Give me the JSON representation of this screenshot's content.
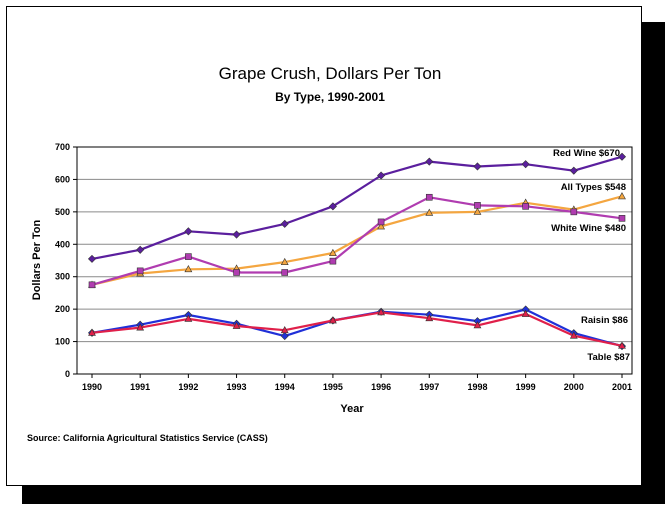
{
  "chart_data": {
    "type": "line",
    "title": "Grape Crush, Dollars Per Ton",
    "subtitle": "By Type, 1990-2001",
    "xlabel": "Year",
    "ylabel": "Dollars Per Ton",
    "ylim": [
      0,
      700
    ],
    "yticks": [
      "0",
      "100",
      "200",
      "300",
      "400",
      "500",
      "600",
      "700"
    ],
    "grid": true,
    "categories": [
      "1990",
      "1991",
      "1992",
      "1993",
      "1994",
      "1995",
      "1996",
      "1997",
      "1998",
      "1999",
      "2000",
      "2001"
    ],
    "series": [
      {
        "name": "Red Wine",
        "label": "Red Wine $670",
        "color": "#5b1f9e",
        "marker": "diamond",
        "values": [
          355,
          383,
          440,
          430,
          463,
          517,
          612,
          655,
          640,
          647,
          627,
          670
        ]
      },
      {
        "name": "All Types",
        "label": "All Types $548",
        "color": "#f4a640",
        "marker": "triangle",
        "values": [
          275,
          310,
          323,
          325,
          345,
          373,
          455,
          497,
          500,
          528,
          507,
          548
        ]
      },
      {
        "name": "White Wine",
        "label": "White Wine $480",
        "color": "#b03cb0",
        "marker": "square",
        "values": [
          275,
          318,
          362,
          313,
          313,
          348,
          469,
          545,
          520,
          517,
          500,
          480
        ]
      },
      {
        "name": "Raisin",
        "label": "Raisin $86",
        "color": "#2030d8",
        "marker": "diamond",
        "values": [
          127,
          152,
          182,
          155,
          117,
          165,
          192,
          183,
          163,
          199,
          126,
          86
        ]
      },
      {
        "name": "Table",
        "label": "Table $87",
        "color": "#e0204a",
        "marker": "triangle",
        "values": [
          127,
          143,
          170,
          148,
          135,
          165,
          190,
          172,
          150,
          185,
          118,
          87
        ]
      }
    ]
  },
  "source_note": "Source:  California Agricultural Statistics Service (CASS)"
}
